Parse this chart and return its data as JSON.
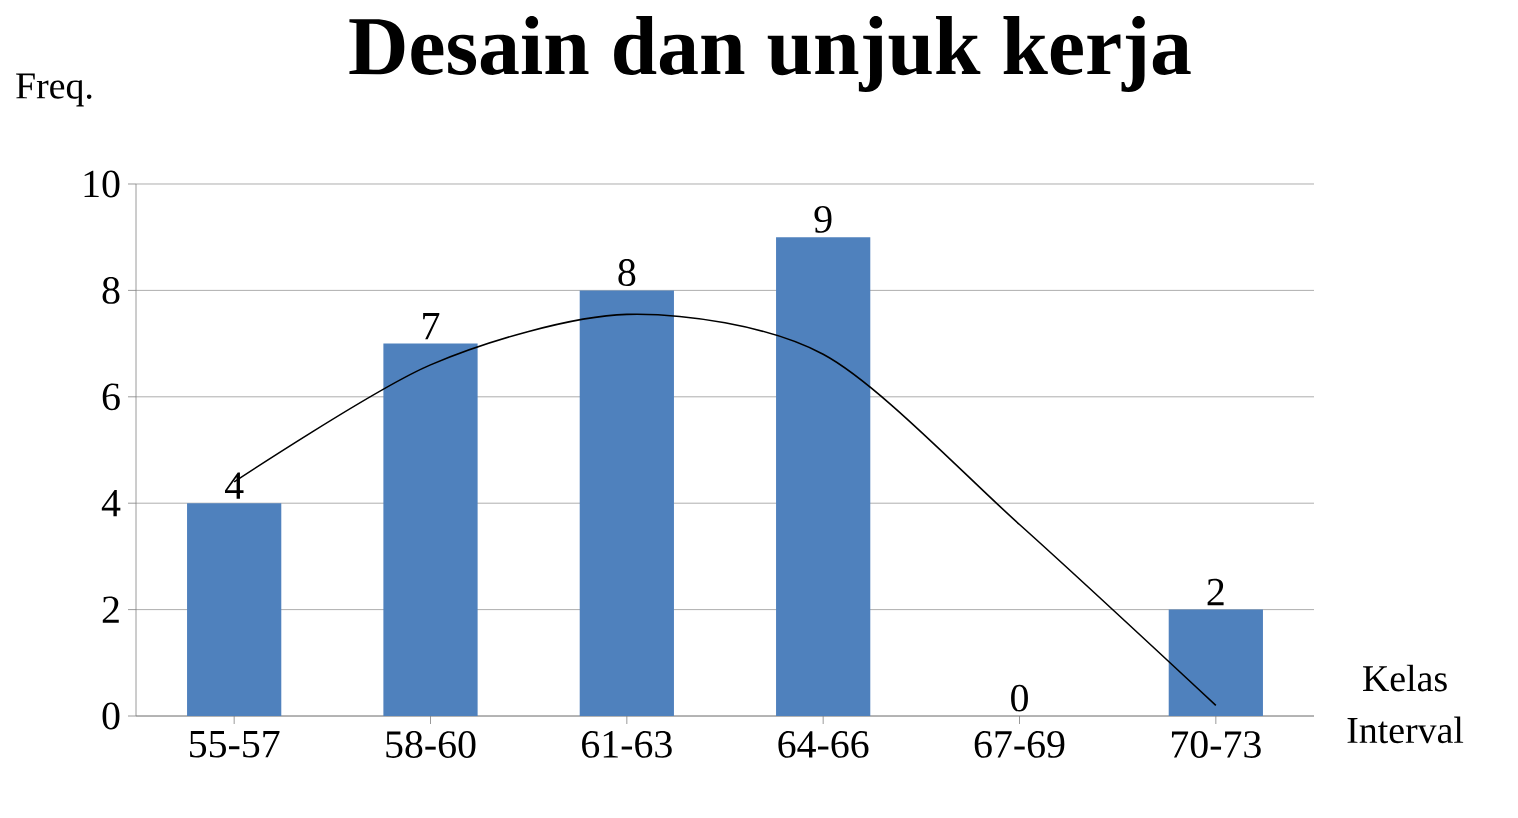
{
  "chart_data": {
    "type": "bar",
    "title": "Desain dan unjuk kerja",
    "ylabel": "Freq.",
    "xlabel": "Kelas Interval",
    "categories": [
      "55-57",
      "58-60",
      "61-63",
      "64-66",
      "67-69",
      "70-73"
    ],
    "series": [
      {
        "color": "#4f81bd",
        "values": [
          4,
          7,
          8,
          9,
          0,
          2
        ],
        "value_labels": [
          "4",
          "7",
          "8",
          "9",
          "0",
          "2"
        ]
      },
      {
        "type": "line",
        "color": "#000000",
        "values": [
          4.4,
          6.6,
          7.55,
          6.8,
          3.6,
          0.2
        ]
      }
    ],
    "ylim": [
      0,
      10
    ],
    "yticks": [
      0,
      2,
      4,
      6,
      8,
      10
    ],
    "grid": "y",
    "marker": "none",
    "line_style": "solid"
  }
}
